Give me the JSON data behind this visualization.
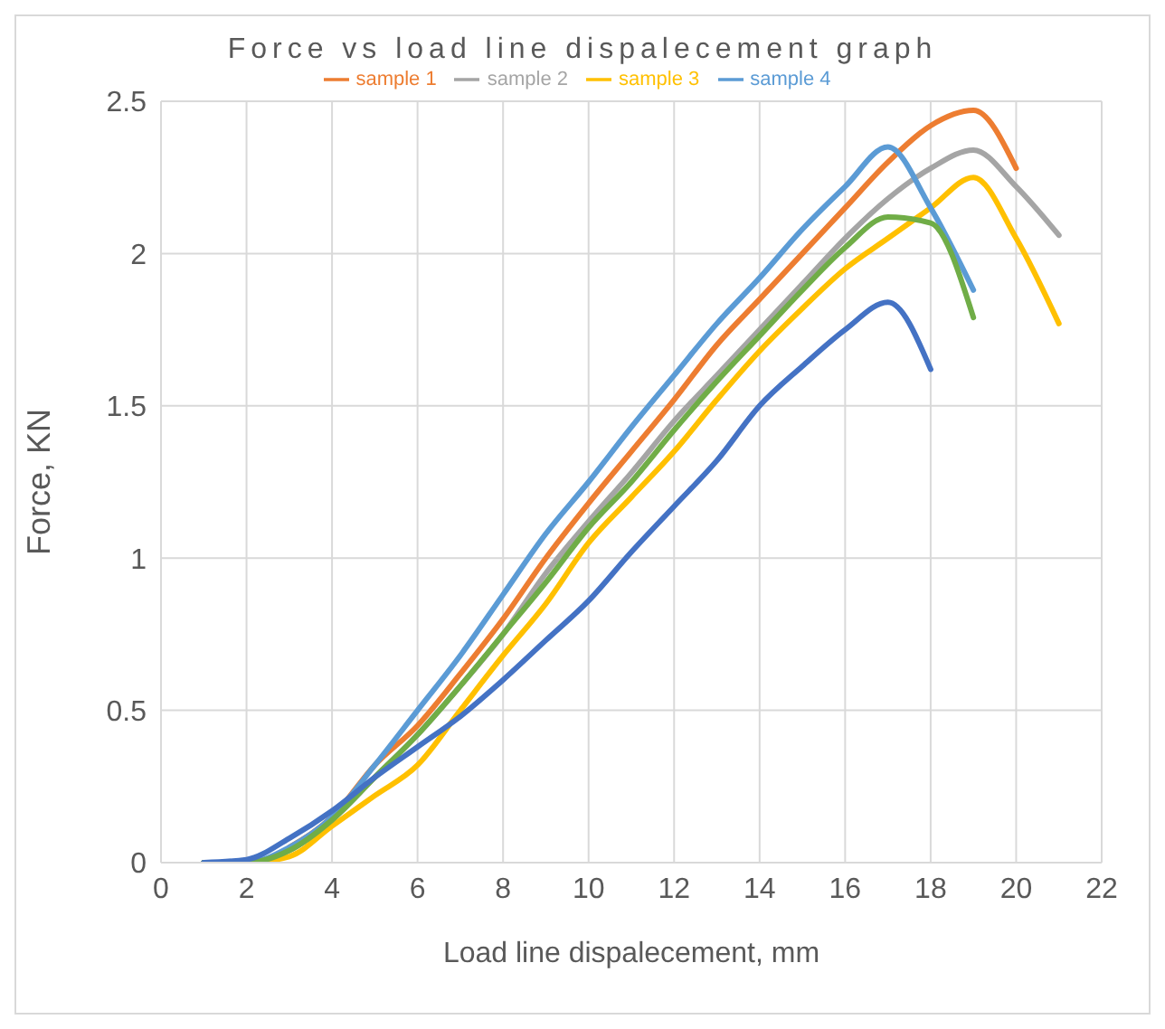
{
  "chart_data": {
    "type": "line",
    "title": "Force vs load line dispalecement graph",
    "xlabel": "Load line dispalecement, mm",
    "ylabel": "Force, KN",
    "xlim": [
      0,
      22
    ],
    "xticks": [
      0,
      2,
      4,
      6,
      8,
      10,
      12,
      14,
      16,
      18,
      20,
      22
    ],
    "ylim": [
      0,
      2.5
    ],
    "yticks": [
      0,
      0.5,
      1,
      1.5,
      2,
      2.5
    ],
    "grid": true,
    "legend": "top",
    "marker": "none",
    "line_style": "solid",
    "series": [
      {
        "name": "sample 1",
        "color": "#ed7d31",
        "x": [
          3,
          4,
          5,
          6,
          7,
          8,
          9,
          10,
          11,
          12,
          13,
          14,
          15,
          16,
          17,
          18,
          19,
          20
        ],
        "values": [
          0.05,
          0.15,
          0.32,
          0.45,
          0.62,
          0.8,
          1.0,
          1.18,
          1.35,
          1.52,
          1.7,
          1.85,
          2.0,
          2.15,
          2.3,
          2.42,
          2.47,
          2.28
        ]
      },
      {
        "name": "sample 2",
        "color": "#a5a5a5",
        "x": [
          1,
          2,
          3,
          4,
          5,
          6,
          7,
          8,
          9,
          10,
          11,
          12,
          13,
          14,
          15,
          16,
          17,
          18,
          19,
          20,
          21
        ],
        "values": [
          0,
          0,
          0.04,
          0.14,
          0.28,
          0.42,
          0.58,
          0.75,
          0.95,
          1.12,
          1.28,
          1.45,
          1.6,
          1.75,
          1.9,
          2.05,
          2.18,
          2.28,
          2.34,
          2.22,
          2.06
        ]
      },
      {
        "name": "sample 3",
        "color": "#ffc000",
        "x": [
          1,
          2,
          3,
          4,
          5,
          6,
          7,
          8,
          9,
          10,
          11,
          12,
          13,
          14,
          15,
          16,
          17,
          18,
          19,
          20,
          21
        ],
        "values": [
          0,
          0,
          0.02,
          0.12,
          0.22,
          0.32,
          0.5,
          0.68,
          0.85,
          1.05,
          1.2,
          1.35,
          1.52,
          1.68,
          1.82,
          1.95,
          2.05,
          2.15,
          2.25,
          2.05,
          1.77
        ]
      },
      {
        "name": "sample 4",
        "color": "#5b9bd5",
        "x": [
          1,
          2,
          3,
          4,
          5,
          6,
          7,
          8,
          9,
          10,
          11,
          12,
          13,
          14,
          15,
          16,
          17,
          18,
          19
        ],
        "values": [
          0,
          0,
          0.05,
          0.15,
          0.32,
          0.5,
          0.68,
          0.88,
          1.08,
          1.25,
          1.43,
          1.6,
          1.77,
          1.92,
          2.08,
          2.22,
          2.35,
          2.15,
          1.88
        ]
      },
      {
        "color": "#70ad47",
        "x": [
          1,
          2,
          3,
          4,
          5,
          6,
          7,
          8,
          9,
          10,
          11,
          12,
          13,
          14,
          15,
          16,
          17,
          18,
          19
        ],
        "values": [
          0,
          0,
          0.04,
          0.14,
          0.28,
          0.42,
          0.58,
          0.75,
          0.92,
          1.1,
          1.25,
          1.42,
          1.58,
          1.73,
          1.88,
          2.02,
          2.12,
          2.1,
          1.79
        ]
      },
      {
        "color": "#4472c4",
        "x": [
          1,
          2,
          3,
          4,
          5,
          6,
          7,
          8,
          9,
          10,
          11,
          12,
          13,
          14,
          15,
          16,
          17,
          18
        ],
        "values": [
          0,
          0.01,
          0.08,
          0.17,
          0.28,
          0.38,
          0.48,
          0.6,
          0.73,
          0.86,
          1.02,
          1.17,
          1.32,
          1.5,
          1.63,
          1.75,
          1.84,
          1.62
        ]
      }
    ]
  }
}
